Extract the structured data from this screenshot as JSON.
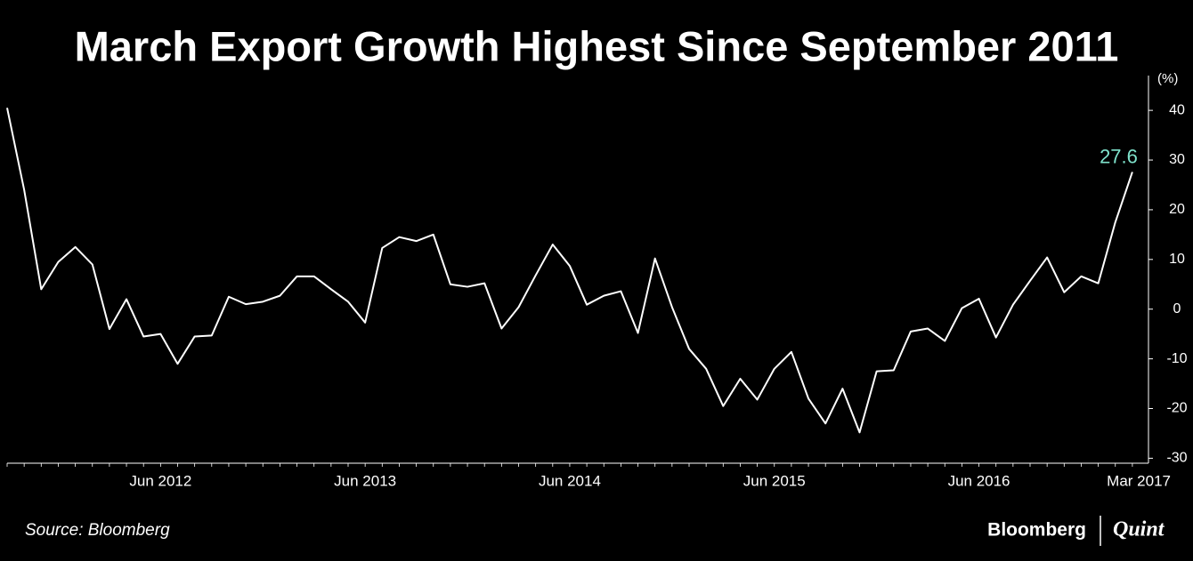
{
  "chart_data": {
    "type": "line",
    "title": "March Export Growth Highest Since September 2011",
    "y_label": "(%)",
    "source": "Source: Bloomberg",
    "brand": [
      "Bloomberg",
      "Quint"
    ],
    "categories": [
      null,
      null,
      null,
      null,
      null,
      null,
      null,
      null,
      null,
      "Jun 2012",
      null,
      null,
      null,
      null,
      null,
      null,
      null,
      null,
      null,
      null,
      null,
      "Jun 2013",
      null,
      null,
      null,
      null,
      null,
      null,
      null,
      null,
      null,
      null,
      null,
      "Jun 2014",
      null,
      null,
      null,
      null,
      null,
      null,
      null,
      null,
      null,
      null,
      null,
      "Jun 2015",
      null,
      null,
      null,
      null,
      null,
      null,
      null,
      null,
      null,
      null,
      null,
      "Jun 2016",
      null,
      null,
      null,
      null,
      null,
      null,
      null,
      null,
      "Mar 2017"
    ],
    "series": [
      {
        "name": "Export growth",
        "color": "#ffffff",
        "label_color": "#7fe3cc",
        "values": [
          40.5,
          24,
          4,
          9.5,
          12.5,
          9,
          -4,
          2,
          -5.5,
          -5,
          -11,
          -5.5,
          -5.3,
          2.5,
          1,
          1.5,
          2.7,
          6.6,
          6.6,
          4,
          1.5,
          -2.7,
          12.3,
          14.5,
          13.7,
          15,
          5,
          4.5,
          5.2,
          -3.9,
          0.4,
          6.8,
          13,
          8.7,
          0.9,
          2.7,
          3.6,
          -4.8,
          10.2,
          0.4,
          -8,
          -12,
          -19.5,
          -14,
          -18.2,
          -12,
          -8.6,
          -18,
          -23,
          -16,
          -24.8,
          -12.5,
          -12.3,
          -4.5,
          -3.9,
          -6.4,
          0.2,
          2.1,
          -5.7,
          0.9,
          5.7,
          10.4,
          3.4,
          6.6,
          5.2,
          17.5,
          27.6
        ]
      }
    ],
    "ylim": [
      -31,
      47
    ],
    "yticks": [
      -30,
      -20,
      -10,
      0,
      10,
      20,
      30,
      40
    ],
    "y_axis_side": "right"
  }
}
